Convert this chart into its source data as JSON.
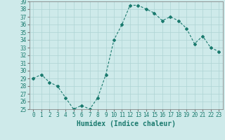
{
  "x": [
    0,
    1,
    2,
    3,
    4,
    5,
    6,
    7,
    8,
    9,
    10,
    11,
    12,
    13,
    14,
    15,
    16,
    17,
    18,
    19,
    20,
    21,
    22,
    23
  ],
  "y": [
    29,
    29.5,
    28.5,
    28,
    26.5,
    25,
    25.5,
    25,
    26.5,
    29.5,
    34,
    36,
    38.5,
    38.5,
    38,
    37.5,
    36.5,
    37,
    36.5,
    35.5,
    33.5,
    34.5,
    33,
    32.5
  ],
  "line_color": "#1a7a6e",
  "marker": "D",
  "marker_size": 2,
  "bg_color": "#ceeaea",
  "grid_color": "#aed4d4",
  "xlabel": "Humidex (Indice chaleur)",
  "xlim": [
    -0.5,
    23.5
  ],
  "ylim": [
    25,
    39
  ],
  "yticks": [
    25,
    26,
    27,
    28,
    29,
    30,
    31,
    32,
    33,
    34,
    35,
    36,
    37,
    38,
    39
  ],
  "xticks": [
    0,
    1,
    2,
    3,
    4,
    5,
    6,
    7,
    8,
    9,
    10,
    11,
    12,
    13,
    14,
    15,
    16,
    17,
    18,
    19,
    20,
    21,
    22,
    23
  ],
  "xlabel_fontsize": 7,
  "tick_fontsize": 5.5
}
